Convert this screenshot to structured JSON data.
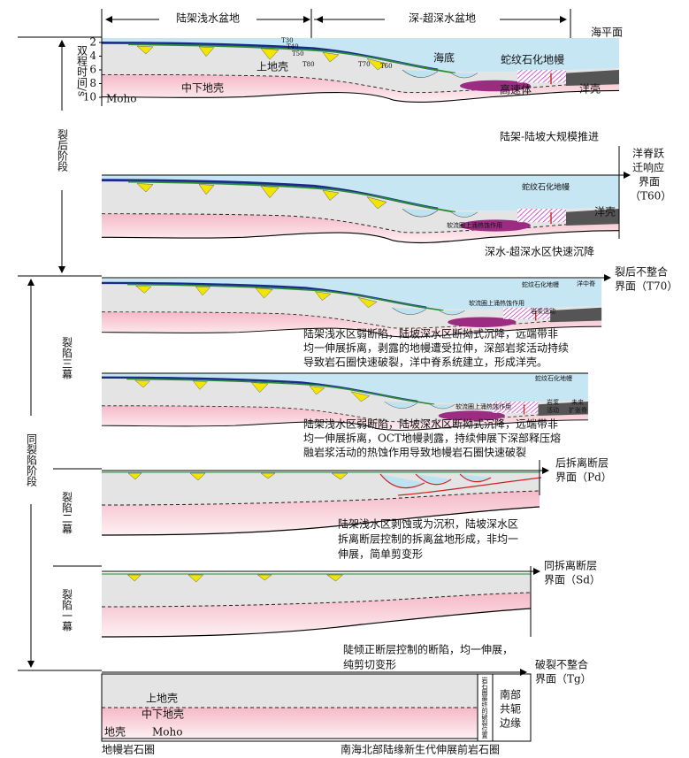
{
  "header": {
    "shelf_basin": "陆架浅水盆地",
    "deep_basin": "深-超深水盆地",
    "sea_level": "海平面"
  },
  "axis": {
    "label": "双程时间/s",
    "ticks": [
      2,
      4,
      6,
      8,
      10
    ],
    "moho": "Moho"
  },
  "stages": {
    "post_rift": "裂后阶段",
    "syn_rift": "同裂陷阶段",
    "rift3": "裂陷三幕",
    "rift2": "裂陷二幕",
    "rift1": "裂陷一幕"
  },
  "panels": [
    {
      "labels": [
        "T30",
        "T40",
        "T50",
        "T80",
        "T70",
        "T60",
        "上地壳",
        "中下地壳",
        "海底",
        "蛇纹石化地幔",
        "高速体",
        "洋壳"
      ],
      "caption": [
        "陆架-陆坡大规模推进"
      ]
    },
    {
      "labels": [
        "蛇纹石化地幔",
        "软流圈上涌热蚀作用",
        "洋壳"
      ],
      "caption": [
        "深水-超深水区快速沉降"
      ],
      "interface": [
        "洋脊跃",
        "迁响应",
        "界面",
        "（T60）"
      ]
    },
    {
      "labels": [
        "蛇纹石化地幔",
        "洋中脊",
        "岩浆活动",
        "软流圈上涌热蚀作用"
      ],
      "caption": [
        "陆架浅水区弱断陷，陆坡深水区断拗式沉降，远端带非",
        "均一伸展拆离，剥露的地幔遭受拉伸，深部岩浆活动持续",
        "导致岩石圈快速破裂，洋中脊系统建立，形成洋壳。"
      ],
      "interface": [
        "裂后不整合",
        "界面（T70）"
      ]
    },
    {
      "labels": [
        "蛇纹石化地幔",
        "软流圈上涌热蚀作用",
        "岩浆",
        "活动",
        "未来",
        "扩张脊"
      ],
      "caption": [
        "陆架浅水区弱断陷，陆坡深水区断拗式沉降，远端带非",
        "均一伸展拆离，OCT地幔剥露，持续伸展下深部释压熔",
        "融岩浆活动的热蚀作用导致地幔岩石圈快速破裂"
      ]
    },
    {
      "caption": [
        "陆架浅水区剥蚀或为沉积，陆坡深水区",
        "拆离断层控制的拆离盆地形成，非均一",
        "伸展，简单剪变形"
      ],
      "interface": [
        "后拆离断层",
        "界面（Pd）"
      ]
    },
    {
      "caption": [
        "陡倾正断层控制的断陷，均一伸展，",
        "纯剪切变形"
      ],
      "interface": [
        "同拆离断层",
        "界面（Sd）"
      ]
    },
    {
      "labels": [
        "上地壳",
        "中下地壳",
        "地壳",
        "Moho",
        "岩石圈最终的破裂位置",
        "南部",
        "共轭",
        "边缘"
      ],
      "interface": [
        "破裂不整合",
        "界面（Tg）"
      ],
      "footer": [
        "地幔岩石圈",
        "南海北部陆缘新生代伸展前岩石圈"
      ]
    }
  ]
}
